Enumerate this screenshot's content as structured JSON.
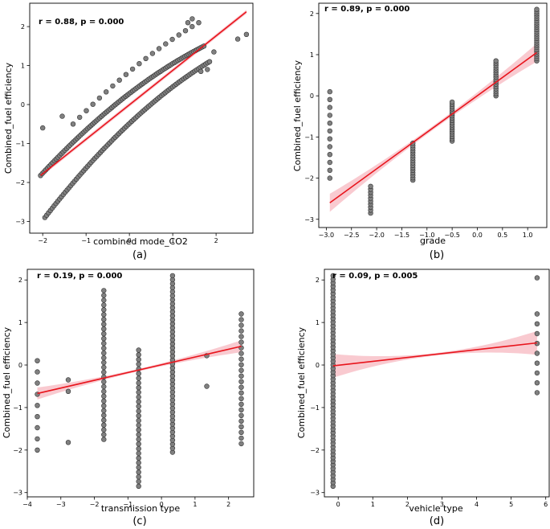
{
  "chart_data": [
    {
      "type": "scatter",
      "panel": "(a)",
      "annotation": "r = 0.88, p = 0.000",
      "xlabel": "combined mode_CO2",
      "ylabel": "Combined_fuel efficiency",
      "xlim": [
        -2.3,
        2.85
      ],
      "ylim": [
        -3.3,
        2.6
      ],
      "xticks": [
        -2,
        -1,
        0,
        1,
        2
      ],
      "yticks": [
        -3,
        -2,
        -1,
        0,
        1,
        2
      ],
      "fit_line": {
        "x": [
          -2.05,
          2.7
        ],
        "y": [
          -1.82,
          2.38
        ]
      },
      "band_halfwidth": 0.05,
      "clusters": [
        {
          "x0": -2.05,
          "x1": 1.72,
          "y0": -1.82,
          "y1": 1.5,
          "bend": -0.5,
          "n": 95
        },
        {
          "x0": -1.95,
          "x1": 1.85,
          "y0": -2.9,
          "y1": 1.1,
          "bend": -0.6,
          "n": 90
        },
        {
          "x0": -1.3,
          "x1": 1.6,
          "y0": -0.5,
          "y1": 2.1,
          "bend": -0.3,
          "n": 20
        }
      ],
      "extra_points": [
        {
          "x": -2.0,
          "y": -0.6
        },
        {
          "x": -1.55,
          "y": -0.3
        },
        {
          "x": 1.35,
          "y": 2.1
        },
        {
          "x": 1.45,
          "y": 2.2
        },
        {
          "x": 2.5,
          "y": 1.68
        },
        {
          "x": 2.7,
          "y": 1.8
        },
        {
          "x": 1.65,
          "y": 0.85
        },
        {
          "x": 1.8,
          "y": 0.9
        },
        {
          "x": 1.95,
          "y": 1.35
        }
      ]
    },
    {
      "type": "scatter",
      "panel": "(b)",
      "annotation": "r = 0.89, p = 0.000",
      "xlabel": "grade",
      "ylabel": "Combined_fuel efficiency",
      "xlim": [
        -3.15,
        1.38
      ],
      "ylim": [
        -3.2,
        2.25
      ],
      "xticks": [
        -3.0,
        -2.5,
        -2.0,
        -1.5,
        -1.0,
        -0.5,
        0.0,
        0.5,
        1.0
      ],
      "xtick_labels": [
        "−3.0",
        "−2.5",
        "−2.0",
        "−1.5",
        "−1.0",
        "−0.5",
        "0.0",
        "0.5",
        "1.0"
      ],
      "yticks": [
        -3,
        -2,
        -1,
        0,
        1,
        2
      ],
      "fit_line": {
        "x": [
          -2.93,
          1.18
        ],
        "y": [
          -2.6,
          1.05
        ]
      },
      "band_halfwidth_ends": 0.22,
      "band_halfwidth_mid": 0.05,
      "columns": [
        {
          "x": -2.93,
          "ymin": -2.0,
          "ymax": 0.1,
          "n": 12
        },
        {
          "x": -2.12,
          "ymin": -2.85,
          "ymax": -2.2,
          "n": 10
        },
        {
          "x": -1.28,
          "ymin": -2.05,
          "ymax": -1.15,
          "n": 16
        },
        {
          "x": -0.5,
          "ymin": -1.1,
          "ymax": -0.15,
          "n": 18
        },
        {
          "x": 0.37,
          "ymin": 0.0,
          "ymax": 0.85,
          "n": 16
        },
        {
          "x": 1.18,
          "ymin": 0.85,
          "ymax": 2.1,
          "n": 24
        }
      ]
    },
    {
      "type": "scatter",
      "panel": "(c)",
      "annotation": "r = 0.19, p = 0.000",
      "xlabel": "transmission type",
      "ylabel": "Combined_fuel efficiency",
      "xlim": [
        -4.0,
        2.75
      ],
      "ylim": [
        -3.1,
        2.25
      ],
      "xticks": [
        -4,
        -3,
        -2,
        -1,
        0,
        1,
        2
      ],
      "yticks": [
        -3,
        -2,
        -1,
        0,
        1,
        2
      ],
      "fit_line": {
        "x": [
          -3.7,
          2.38
        ],
        "y": [
          -0.67,
          0.44
        ]
      },
      "band_halfwidth_ends": 0.14,
      "band_halfwidth_mid": 0.03,
      "columns": [
        {
          "x": -3.7,
          "ymin": -2.0,
          "ymax": 0.1,
          "n": 9
        },
        {
          "x": -1.72,
          "ymin": -1.75,
          "ymax": 1.75,
          "n": 32
        },
        {
          "x": -0.68,
          "ymin": -2.85,
          "ymax": 0.35,
          "n": 30
        },
        {
          "x": 0.33,
          "ymin": -2.05,
          "ymax": 2.1,
          "n": 45
        },
        {
          "x": 2.38,
          "ymin": -1.85,
          "ymax": 1.2,
          "n": 24
        }
      ],
      "extra_points": [
        {
          "x": -2.78,
          "y": -0.35
        },
        {
          "x": -2.78,
          "y": -0.62
        },
        {
          "x": -2.78,
          "y": -1.82
        },
        {
          "x": 1.35,
          "y": 0.22
        },
        {
          "x": 1.35,
          "y": -0.5
        }
      ]
    },
    {
      "type": "scatter",
      "panel": "(d)",
      "annotation": "r = 0.09, p = 0.005",
      "xlabel": "vehicle type",
      "ylabel": "Combined_fuel efficiency",
      "xlim": [
        -0.4,
        6.1
      ],
      "ylim": [
        -3.1,
        2.25
      ],
      "xticks": [
        0,
        1,
        2,
        3,
        4,
        5,
        6
      ],
      "yticks": [
        -3,
        -2,
        -1,
        0,
        1,
        2
      ],
      "fit_line": {
        "x": [
          -0.15,
          5.75
        ],
        "y": [
          -0.02,
          0.52
        ]
      },
      "band_halfwidth_ends": 0.28,
      "band_halfwidth_mid": 0.03,
      "columns": [
        {
          "x": -0.15,
          "ymin": -2.85,
          "ymax": 2.1,
          "n": 60
        },
        {
          "x": 5.75,
          "ymin": -0.65,
          "ymax": 1.2,
          "n": 9
        }
      ],
      "extra_points": [
        {
          "x": 5.75,
          "y": 2.05
        }
      ]
    }
  ]
}
